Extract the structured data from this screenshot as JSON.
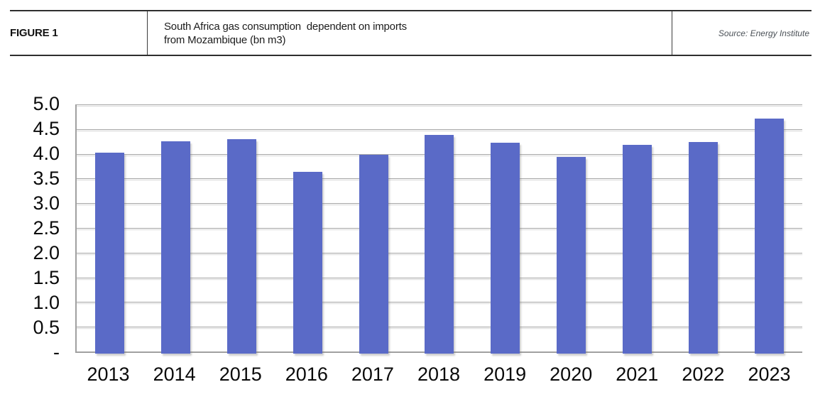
{
  "header": {
    "figure_label": "FIGURE 1",
    "title": "South Africa gas consumption  dependent on imports\nfrom Mozambique (bn m3)",
    "source": "Source: Energy Institute"
  },
  "chart_data": {
    "type": "bar",
    "title": "South Africa gas consumption dependent on imports from Mozambique (bn m3)",
    "source": "Energy Institute",
    "categories": [
      "2013",
      "2014",
      "2015",
      "2016",
      "2017",
      "2018",
      "2019",
      "2020",
      "2021",
      "2022",
      "2023"
    ],
    "values": [
      4.07,
      4.3,
      4.34,
      3.68,
      4.02,
      4.42,
      4.27,
      3.98,
      4.22,
      4.28,
      4.76
    ],
    "unit": "bn m3",
    "xlabel": "",
    "ylabel": "",
    "ylim": [
      0,
      5
    ],
    "ytick_step": 0.5,
    "ytick_labels": [
      "5.0",
      "4.5",
      "4.0",
      "3.5",
      "3.0",
      "2.5",
      "2.0",
      "1.5",
      "1.0",
      "0.5",
      "-"
    ],
    "grid": true,
    "legend": false,
    "bar_color": "#5a6ac7",
    "gridline_color": "#a8a8a8",
    "axis_color": "#a0a0a0"
  }
}
